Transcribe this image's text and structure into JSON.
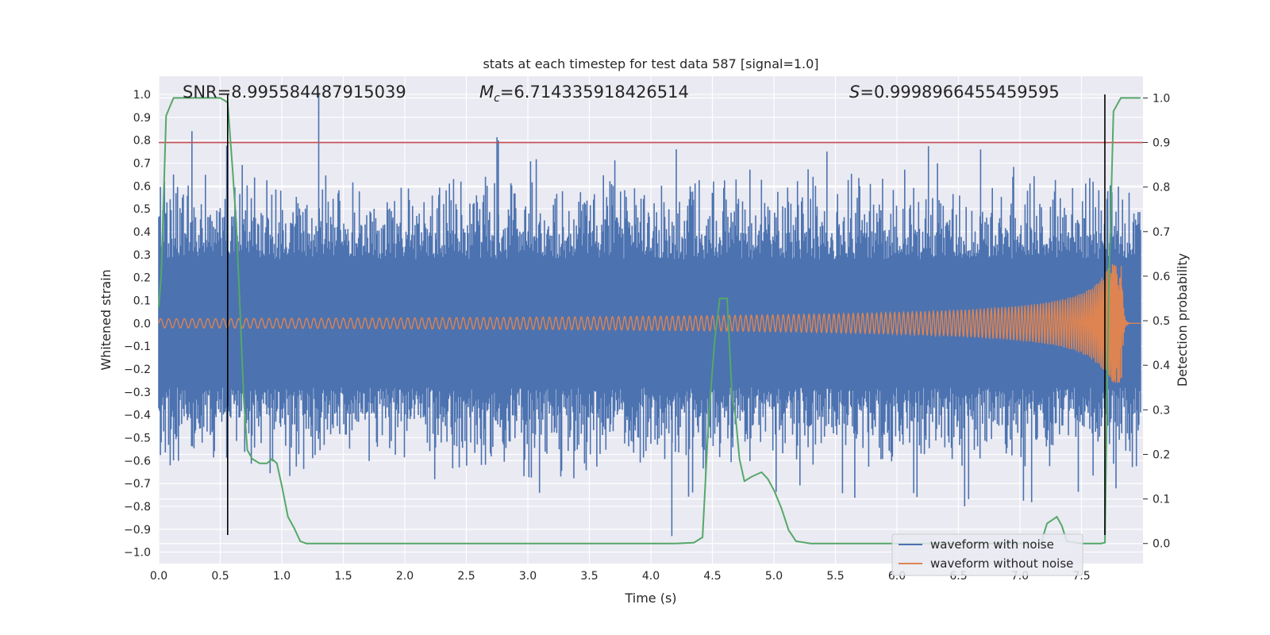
{
  "chart_data": {
    "type": "line",
    "title": "stats at each timestep for test data 587 [signal=1.0]",
    "xlabel": "Time (s)",
    "ylabel": "Whitened strain",
    "y2label": "Detection probability",
    "xlim": [
      0.0,
      8.0
    ],
    "ylim": [
      -1.05,
      1.08
    ],
    "y2lim": [
      -0.045,
      1.0488
    ],
    "x_ticks": [
      0.0,
      0.5,
      1.0,
      1.5,
      2.0,
      2.5,
      3.0,
      3.5,
      4.0,
      4.5,
      5.0,
      5.5,
      6.0,
      6.5,
      7.0,
      7.5
    ],
    "x_tick_labels": [
      "0.0",
      "0.5",
      "1.0",
      "1.5",
      "2.0",
      "2.5",
      "3.0",
      "3.5",
      "4.0",
      "4.5",
      "5.0",
      "5.5",
      "6.0",
      "6.5",
      "7.0",
      "7.5"
    ],
    "y_ticks": [
      1.0,
      0.9,
      0.8,
      0.7,
      0.6,
      0.5,
      0.4,
      0.3,
      0.2,
      0.1,
      0.0,
      -0.1,
      -0.2,
      -0.3,
      -0.4,
      -0.5,
      -0.6,
      -0.7,
      -0.8,
      -0.9,
      -1.0
    ],
    "y_tick_labels": [
      "1.0",
      "0.9",
      "0.8",
      "0.7",
      "0.6",
      "0.5",
      "0.4",
      "0.3",
      "0.2",
      "0.1",
      "0.0",
      "−0.1",
      "−0.2",
      "−0.3",
      "−0.4",
      "−0.5",
      "−0.6",
      "−0.7",
      "−0.8",
      "−0.9",
      "−1.0"
    ],
    "y2_ticks": [
      1.0,
      0.9,
      0.8,
      0.7,
      0.6,
      0.5,
      0.4,
      0.3,
      0.2,
      0.1,
      0.0
    ],
    "y2_tick_labels": [
      "1.0",
      "0.9",
      "0.8",
      "0.7",
      "0.6",
      "0.5",
      "0.4",
      "0.3",
      "0.2",
      "0.1",
      "0.0"
    ],
    "grid": true,
    "legend_placement": "lower-right",
    "annotations": {
      "snr": "SNR=8.995584487915039",
      "mc_symbol": "M",
      "mc_subscript": "c",
      "mc_value": "=6.714335918426514",
      "s_symbol": "S",
      "s_value": "=0.9998966455459595"
    },
    "threshold": {
      "y2": 0.9,
      "color": "#c44e52"
    },
    "vertical_markers": [
      {
        "x": 0.56,
        "y_from": -0.925,
        "y_to": 1.0
      },
      {
        "x": 7.69,
        "y_from": -0.925,
        "y_to": 1.0
      }
    ],
    "series": [
      {
        "name": "waveform with noise",
        "axis": "y",
        "color": "#4c72b0",
        "envelope": {
          "core": 0.28,
          "sigma": 0.15,
          "max": 1.0,
          "min": -0.93
        },
        "x_range": [
          0.0,
          7.98
        ]
      },
      {
        "name": "waveform without noise",
        "axis": "y",
        "color": "#dd8452",
        "chirp": {
          "x_range": [
            0.0,
            7.83
          ],
          "amplitude_start": 0.02,
          "amplitude_peak": 0.26,
          "amplitude_min": -0.23,
          "merger_x": 7.83,
          "ringdown_end": 7.9
        }
      },
      {
        "name": "detection probability",
        "axis": "y2",
        "color": "#55a868",
        "x": [
          0.0,
          0.02,
          0.06,
          0.12,
          0.2,
          0.3,
          0.4,
          0.5,
          0.56,
          0.6,
          0.63,
          0.66,
          0.69,
          0.72,
          0.76,
          0.82,
          0.88,
          0.92,
          0.96,
          1.0,
          1.05,
          1.1,
          1.15,
          1.2,
          1.28,
          1.5,
          2.0,
          2.5,
          3.0,
          3.5,
          4.0,
          4.2,
          4.35,
          4.42,
          4.47,
          4.52,
          4.56,
          4.62,
          4.66,
          4.69,
          4.72,
          4.76,
          4.82,
          4.9,
          4.95,
          5.0,
          5.06,
          5.12,
          5.18,
          5.3,
          6.0,
          6.5,
          7.0,
          7.17,
          7.22,
          7.3,
          7.34,
          7.38,
          7.5,
          7.66,
          7.69,
          7.72,
          7.76,
          7.82,
          7.88,
          7.98
        ],
        "y": [
          0.53,
          0.6,
          0.96,
          1.0,
          1.0,
          1.0,
          1.0,
          1.0,
          0.99,
          0.84,
          0.72,
          0.53,
          0.33,
          0.21,
          0.19,
          0.18,
          0.18,
          0.19,
          0.18,
          0.13,
          0.06,
          0.035,
          0.005,
          0.0,
          0.0,
          0.0,
          0.0,
          0.0,
          0.0,
          0.0,
          0.0,
          0.0,
          0.002,
          0.014,
          0.28,
          0.46,
          0.55,
          0.55,
          0.33,
          0.28,
          0.19,
          0.14,
          0.15,
          0.16,
          0.145,
          0.12,
          0.08,
          0.03,
          0.005,
          0.0,
          0.0,
          0.0,
          0.0,
          0.0,
          0.045,
          0.06,
          0.04,
          0.005,
          0.0,
          0.0,
          0.002,
          0.55,
          0.97,
          1.0,
          1.0,
          1.0
        ]
      }
    ]
  }
}
